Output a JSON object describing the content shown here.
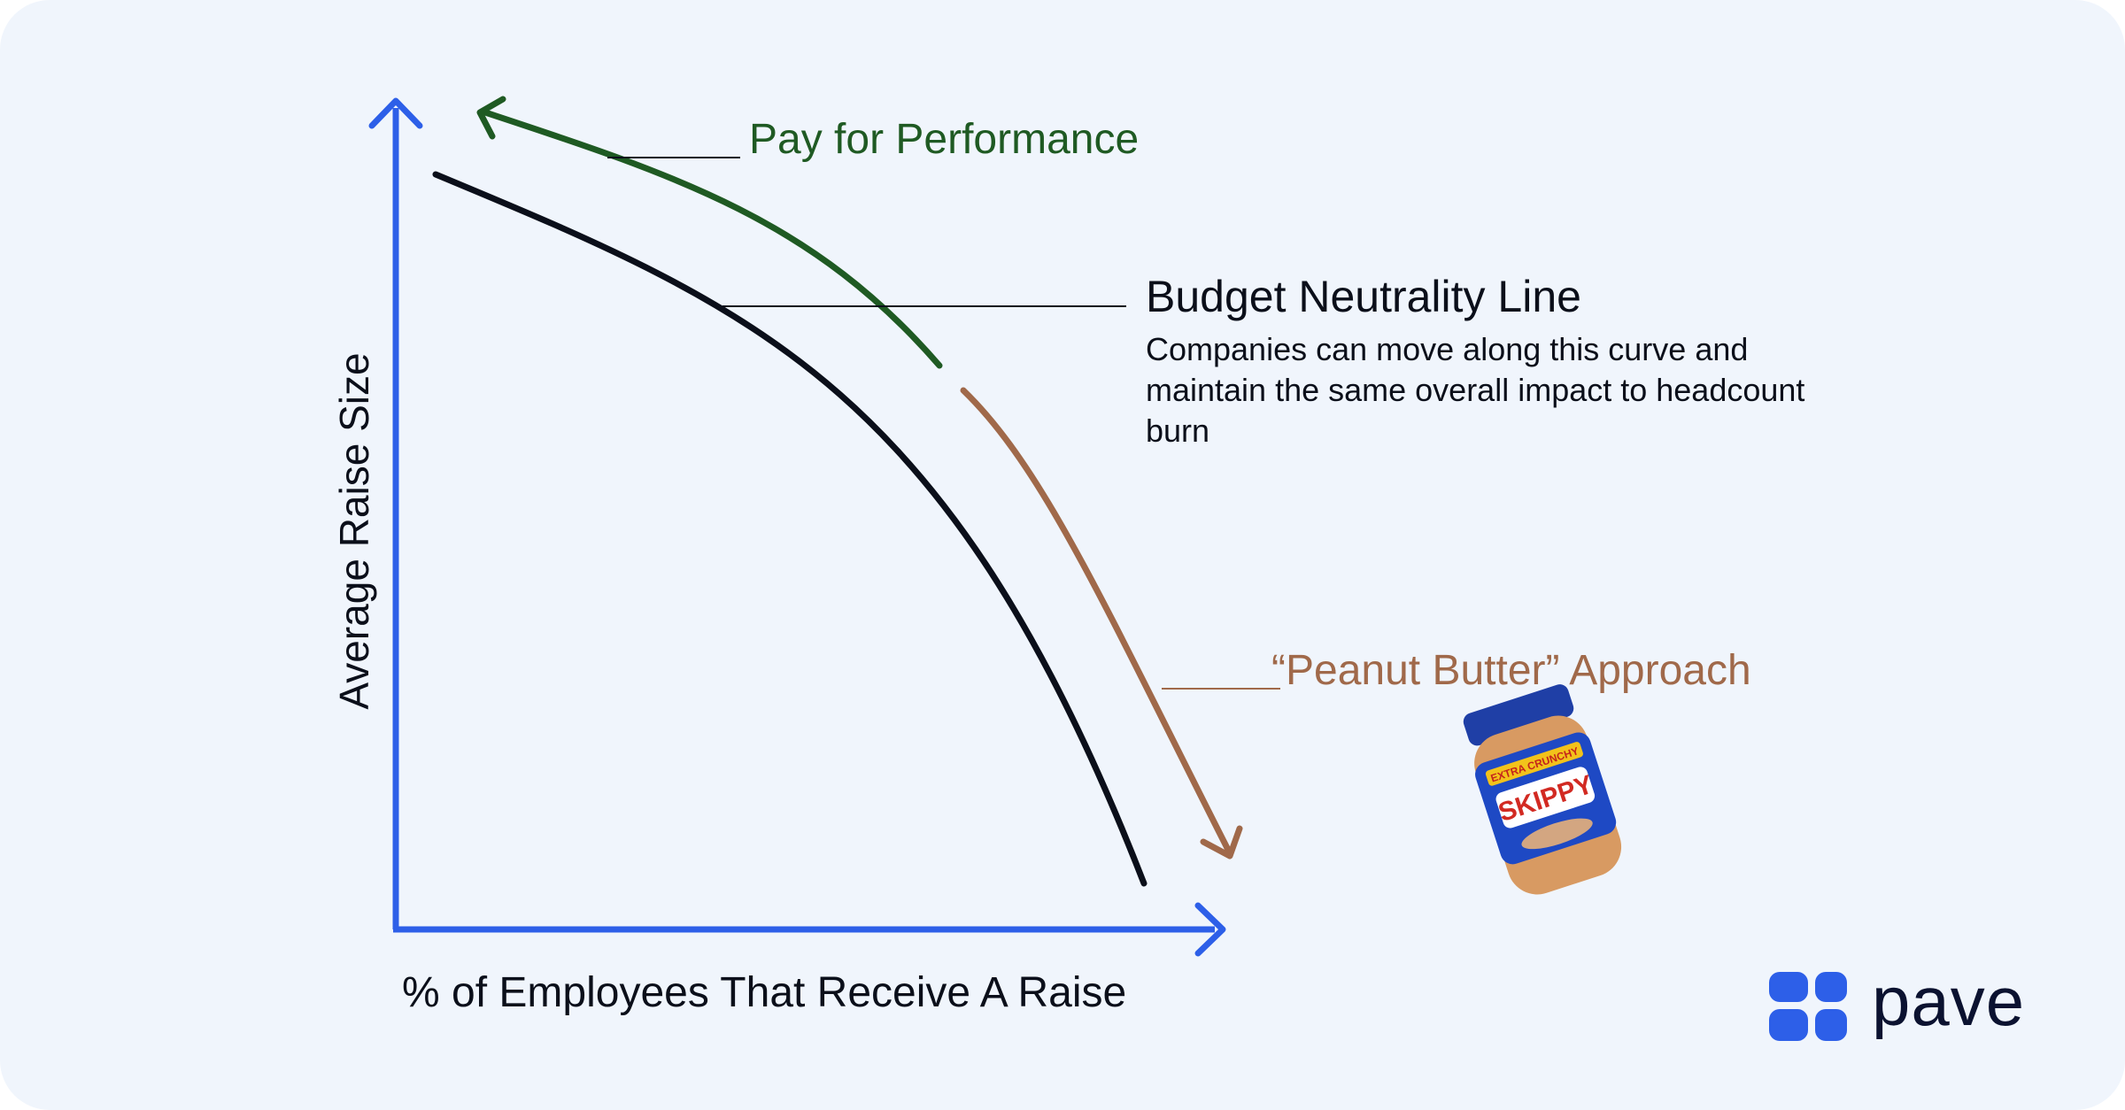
{
  "labels": {
    "pay_for_performance": "Pay for Performance",
    "budget_neutrality_title": "Budget Neutrality Line",
    "budget_neutrality_desc": "Companies can move along this curve and maintain the same overall impact to headcount burn",
    "peanut_butter": "“Peanut Butter” Approach",
    "x_axis": "% of Employees That Receive A Raise",
    "y_axis": "Average Raise Size"
  },
  "jar": {
    "brand": "SKIPPY",
    "band": "EXTRA CRUNCHY"
  },
  "logo": {
    "text": "pave"
  },
  "colors": {
    "axis": "#2d5fe8",
    "curve": "#0b0f1a",
    "pay_arrow": "#1f5a23",
    "peanut_arrow": "#a0694a",
    "logo_blocks": "#2d5fe8",
    "background": "#f0f5fc"
  },
  "icons": [
    "up-arrow-icon",
    "right-arrow-icon",
    "pave-logo-icon",
    "peanut-butter-jar-icon"
  ]
}
